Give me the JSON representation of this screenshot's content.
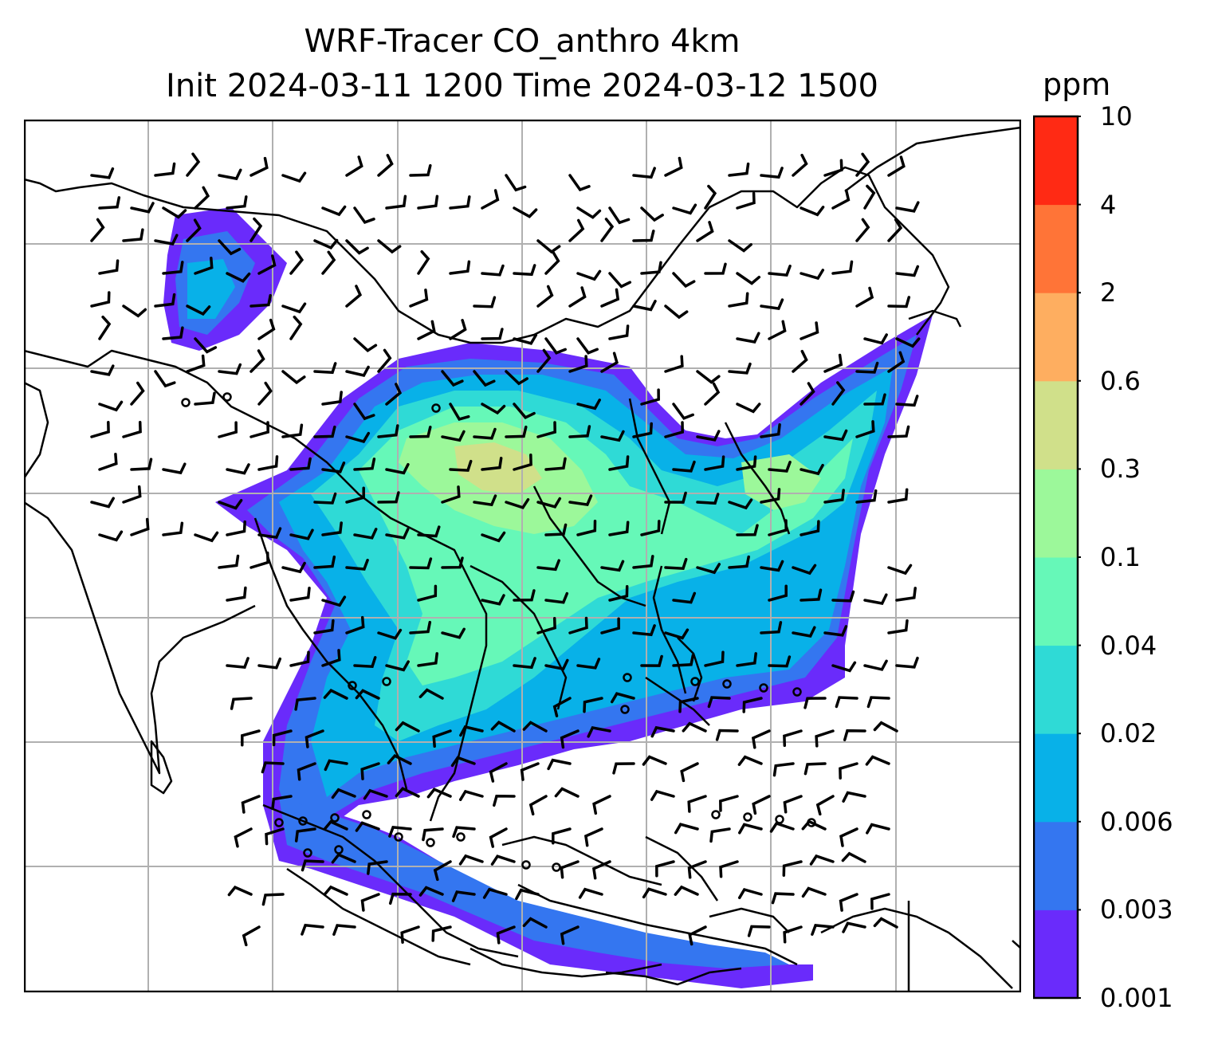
{
  "title": {
    "line1": "WRF-Tracer CO_anthro 4km",
    "line2": "Init 2024-03-11 1200 Time 2024-03-12 1500"
  },
  "colorbar": {
    "unit": "ppm",
    "levels": [
      "0.001",
      "0.003",
      "0.006",
      "0.02",
      "0.04",
      "0.1",
      "0.3",
      "0.6",
      "2",
      "4",
      "10"
    ],
    "colors": [
      "#6a2bfb",
      "#3476f0",
      "#08b1e8",
      "#2fdad6",
      "#66f8b8",
      "#9cf89a",
      "#d0e08a",
      "#feae60",
      "#ff7437",
      "#ff2a14"
    ]
  },
  "map": {
    "grid": "on",
    "frame_color": "#000000",
    "grid_color": "#b0b0b0",
    "coastline_color": "#000000",
    "icons": [
      "wind-barb-icon",
      "calm-wind-circle-icon"
    ]
  }
}
